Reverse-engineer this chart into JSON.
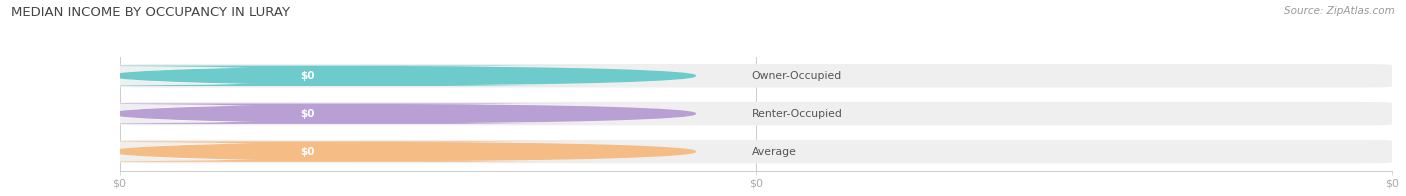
{
  "title": "MEDIAN INCOME BY OCCUPANCY IN LURAY",
  "source": "Source: ZipAtlas.com",
  "categories": [
    "Owner-Occupied",
    "Renter-Occupied",
    "Average"
  ],
  "values": [
    0,
    0,
    0
  ],
  "bar_colors": [
    "#6ecbcb",
    "#b89fd4",
    "#f5bc85"
  ],
  "bar_bg_color": "#efefef",
  "bar_bg_color2": "#f8f8f8",
  "label_color": "#555555",
  "title_color": "#444444",
  "source_color": "#999999",
  "bg_color": "#ffffff",
  "tick_label_color": "#aaaaaa",
  "figsize": [
    14.06,
    1.96
  ],
  "dpi": 100
}
